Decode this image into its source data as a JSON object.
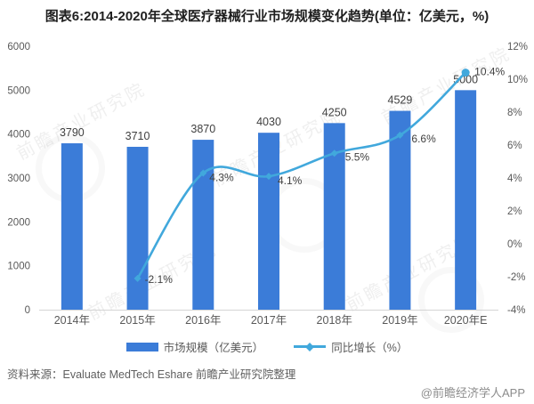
{
  "title": "图表6:2014-2020年全球医疗器械行业市场规模变化趋势(单位：亿美元，%)",
  "chart_data": {
    "type": "bar+line",
    "categories": [
      "2014年",
      "2015年",
      "2016年",
      "2017年",
      "2018年",
      "2019年",
      "2020年E"
    ],
    "series": [
      {
        "name": "市场规模（亿美元）",
        "type": "bar",
        "axis": "left",
        "color": "#3b7cd8",
        "values": [
          3790,
          3710,
          3870,
          4030,
          4250,
          4529,
          5000
        ]
      },
      {
        "name": "同比增长（%）",
        "type": "line",
        "axis": "right",
        "color": "#41a8dc",
        "values": [
          null,
          -2.1,
          4.3,
          4.1,
          5.5,
          6.6,
          10.4
        ]
      }
    ],
    "bar_labels": [
      "3790",
      "3710",
      "3870",
      "4030",
      "4250",
      "4529",
      "5000"
    ],
    "line_labels": [
      "-2.1%",
      "4.3%",
      "4.1%",
      "5.5%",
      "6.6%",
      "10.4%"
    ],
    "left_axis": {
      "min": 0,
      "max": 6000,
      "step": 1000,
      "ticks": [
        "0",
        "1000",
        "2000",
        "3000",
        "4000",
        "5000",
        "6000"
      ]
    },
    "right_axis": {
      "min": -4,
      "max": 12,
      "step": 2,
      "ticks": [
        "-4%",
        "-2%",
        "0%",
        "2%",
        "4%",
        "6%",
        "8%",
        "10%",
        "12%"
      ]
    },
    "grid": "off",
    "legend_position": "bottom"
  },
  "footer": {
    "source": "资料来源：Evaluate MedTech Eshare 前瞻产业研究院整理",
    "credit": "@前瞻经济学人APP"
  },
  "watermark": {
    "text": "前瞻产业研究院"
  }
}
